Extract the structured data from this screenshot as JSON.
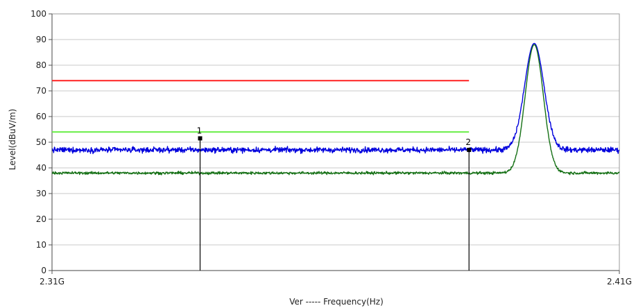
{
  "chart_data": {
    "type": "line",
    "xlabel": "Ver ----- Frequency(Hz)",
    "ylabel": "Level(dBuV/m)",
    "x_unit": "GHz",
    "xlim": [
      2.31,
      2.41
    ],
    "ylim": [
      0,
      100
    ],
    "yticks": [
      0,
      10,
      20,
      30,
      40,
      50,
      60,
      70,
      80,
      90,
      100
    ],
    "xtick_labels": [
      {
        "x": 2.31,
        "label": "2.31G"
      },
      {
        "x": 2.41,
        "label": "2.41G"
      }
    ],
    "grid": true,
    "series": [
      {
        "color": "#ff2020",
        "style": "limit",
        "points": [
          [
            2.31,
            74
          ],
          [
            2.3835,
            74
          ]
        ]
      },
      {
        "color": "#66ee44",
        "style": "limit",
        "points": [
          [
            2.31,
            54
          ],
          [
            2.3835,
            54
          ]
        ]
      },
      {
        "color": "#0000dd",
        "style": "trace",
        "baseline": 47,
        "noise": 1.0,
        "peak": {
          "center": 2.395,
          "level": 88.5,
          "width": 0.0017
        }
      },
      {
        "color": "#157015",
        "style": "trace",
        "baseline": 38,
        "noise": 0.5,
        "peak": {
          "center": 2.395,
          "level": 88,
          "width": 0.0016
        }
      }
    ],
    "markers": [
      {
        "label": "1",
        "x": 2.3361,
        "y": 51.5
      },
      {
        "label": "2",
        "x": 2.3835,
        "y": 47
      }
    ]
  },
  "colors": {
    "grid": "#c8c8c8",
    "frame": "#9a9a9a",
    "marker": "#000000"
  }
}
